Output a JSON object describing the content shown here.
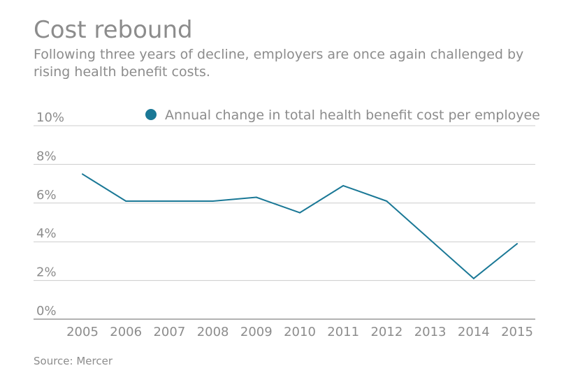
{
  "title": "Cost rebound",
  "subtitle": "Following three years of decline, employers are once again challenged by rising health benefit costs.",
  "source": "Source: Mercer",
  "colors": {
    "series": "#1a7896",
    "text": "#8c8c8c",
    "grid": "#cccccc",
    "baseline": "#999999"
  },
  "chart_data": {
    "type": "line",
    "title": "Cost rebound",
    "xlabel": "",
    "ylabel": "",
    "x": [
      "2005",
      "2006",
      "2007",
      "2008",
      "2009",
      "2010",
      "2011",
      "2012",
      "2013",
      "2014",
      "2015"
    ],
    "series": [
      {
        "name": "Annual change in total health benefit cost per employee",
        "values": [
          7.5,
          6.1,
          6.1,
          6.1,
          6.3,
          5.5,
          6.9,
          6.1,
          4.1,
          2.1,
          3.9
        ]
      }
    ],
    "ylim": [
      0,
      10
    ],
    "yticks": [
      0,
      2,
      4,
      6,
      8,
      10
    ],
    "ytick_labels": [
      "0%",
      "2%",
      "4%",
      "6%",
      "8%",
      "10%"
    ],
    "grid": true,
    "legend": "top-right"
  }
}
